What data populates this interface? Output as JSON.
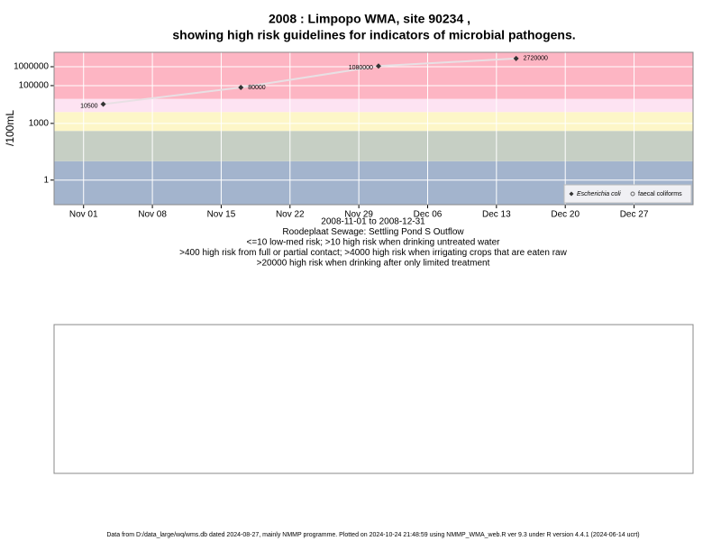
{
  "chart_data": {
    "type": "line",
    "title": "2008 : Limpopo WMA, site 90234 ,",
    "subtitle": "showing high risk guidelines for indicators of microbial pathogens.",
    "ylabel": "/100mL",
    "xlabel_lines": [
      "2008-11-01 to 2008-12-31",
      "Roodeplaat Sewage: Settling Pond S Outflow",
      "<=10 low-med risk; >10 high risk when drinking untreated water",
      ">400 high risk from full or partial contact; >4000 high risk when irrigating crops that are eaten raw",
      ">20000 high risk when drinking after only limited treatment"
    ],
    "x": [
      "2008-11-03",
      "2008-11-17",
      "2008-12-01",
      "2008-12-15"
    ],
    "series": [
      {
        "name": "Escherichia coli",
        "color": "#333333",
        "values": [
          10500,
          80000,
          1080000,
          2720000
        ]
      },
      {
        "name": "faecal coliforms",
        "color": "#666666",
        "values": [
          null,
          null,
          null,
          null
        ]
      }
    ],
    "log_y": true,
    "ylim": [
      0.05,
      5800000
    ],
    "yticks": [
      1,
      1000,
      100000,
      1000000
    ],
    "xlim": [
      "2008-10-29",
      "2009-01-02"
    ],
    "xticks": [
      {
        "value": "2008-11-01",
        "label": "Nov 01"
      },
      {
        "value": "2008-11-08",
        "label": "Nov 08"
      },
      {
        "value": "2008-11-15",
        "label": "Nov 15"
      },
      {
        "value": "2008-11-22",
        "label": "Nov 22"
      },
      {
        "value": "2008-11-29",
        "label": "Nov 29"
      },
      {
        "value": "2008-12-06",
        "label": "Dec 06"
      },
      {
        "value": "2008-12-13",
        "label": "Dec 13"
      },
      {
        "value": "2008-12-20",
        "label": "Dec 20"
      },
      {
        "value": "2008-12-27",
        "label": "Dec 27"
      }
    ],
    "band_thresholds": [
      10,
      400,
      4000,
      20000
    ],
    "band_colors": [
      "#a3b4cd",
      "#c6cfc4",
      "#fdf6c8",
      "#fde3f2",
      "#fdb5c3"
    ],
    "grid": true,
    "legend_position": "bottom-right",
    "footer": "Data from D:/data_large/wq/wms.db dated 2024-08-27, mainly NMMP programme. Plotted on 2024-10-24 21:48:59 using NMMP_WMA_web.R ver 9.3 under R version 4.4.1 (2024-06-14 ucrt)"
  }
}
